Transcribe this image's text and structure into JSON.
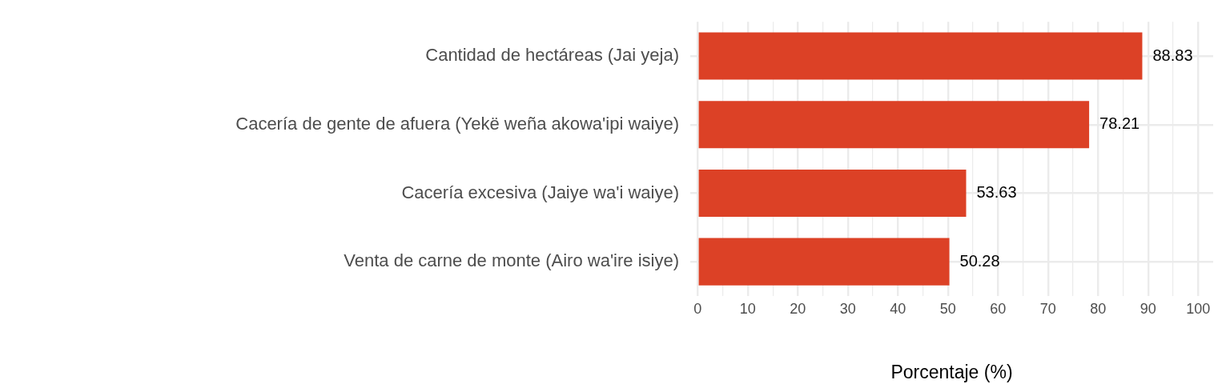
{
  "chart_data": {
    "type": "bar",
    "orientation": "horizontal",
    "xlabel": "Porcentaje (%)",
    "categories": [
      "Cantidad de hectáreas (Jai yeja)",
      "Cacería de gente de afuera (Yekë weña akowa'ipi waiye)",
      "Cacería excesiva (Jaiye wa'i waiye)",
      "Venta de carne de monte (Airo wa'ire isiye)"
    ],
    "values": [
      88.83,
      78.21,
      53.63,
      50.28
    ],
    "color": "#dc4126",
    "xlim": [
      -1.5,
      103
    ],
    "xticks": [
      0,
      {
        "value": 5,
        "label": null
      },
      10,
      {
        "value": 15,
        "label": null
      },
      20,
      {
        "value": 25,
        "label": null
      },
      30,
      {
        "value": 35,
        "label": null
      },
      40,
      {
        "value": 45,
        "label": null
      },
      50,
      {
        "value": 55,
        "label": null
      },
      60,
      {
        "value": 65,
        "label": null
      },
      70,
      {
        "value": 75,
        "label": null
      },
      80,
      {
        "value": 85,
        "label": null
      },
      90,
      {
        "value": 95,
        "label": null
      },
      100
    ],
    "grid": true,
    "data_labels": true
  }
}
